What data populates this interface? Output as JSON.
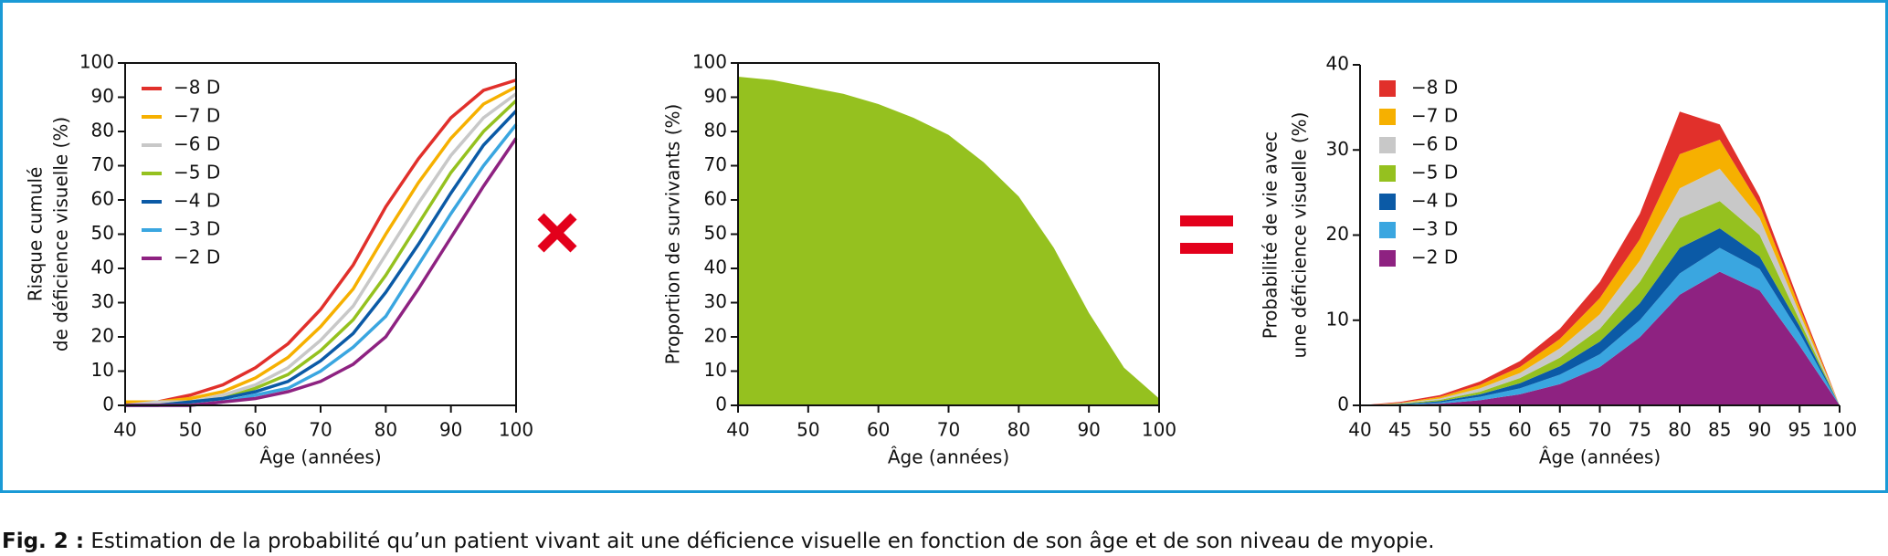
{
  "chart_data": [
    {
      "type": "line",
      "xlabel": "Âge (années)",
      "ylabel": [
        "Risque cumulé",
        "de déficience visuelle (%)"
      ],
      "x": [
        40,
        45,
        50,
        55,
        60,
        65,
        70,
        75,
        80,
        85,
        90,
        95,
        100
      ],
      "xlim": [
        40,
        100
      ],
      "xticks": [
        40,
        50,
        60,
        70,
        80,
        90,
        100
      ],
      "ylim": [
        0,
        100
      ],
      "yticks": [
        0,
        10,
        20,
        30,
        40,
        50,
        60,
        70,
        80,
        90,
        100
      ],
      "legend": "upper left",
      "grid": false,
      "series": [
        {
          "name": "−8 D",
          "color": "#e1302b",
          "values": [
            1,
            1,
            3,
            6,
            11,
            18,
            28,
            41,
            58,
            72,
            84,
            92,
            95
          ]
        },
        {
          "name": "−7 D",
          "color": "#f6b000",
          "values": [
            1,
            1,
            2,
            4,
            8,
            14,
            23,
            34,
            50,
            65,
            78,
            88,
            93
          ]
        },
        {
          "name": "−6 D",
          "color": "#c8c8c8",
          "values": [
            0,
            1,
            1,
            3,
            6,
            11,
            19,
            29,
            44,
            59,
            73,
            84,
            91
          ]
        },
        {
          "name": "−5 D",
          "color": "#95c11f",
          "values": [
            0,
            0,
            1,
            2,
            5,
            9,
            16,
            25,
            38,
            53,
            68,
            80,
            89
          ]
        },
        {
          "name": "−4 D",
          "color": "#0b5aa6",
          "values": [
            0,
            0,
            1,
            2,
            4,
            7,
            13,
            21,
            33,
            47,
            62,
            76,
            86
          ]
        },
        {
          "name": "−3 D",
          "color": "#3aa6e0",
          "values": [
            0,
            0,
            0,
            1,
            3,
            5,
            10,
            17,
            26,
            41,
            56,
            70,
            82
          ]
        },
        {
          "name": "−2 D",
          "color": "#8e2281",
          "values": [
            0,
            0,
            0,
            1,
            2,
            4,
            7,
            12,
            20,
            34,
            49,
            64,
            78
          ]
        }
      ]
    },
    {
      "type": "area",
      "xlabel": "Âge (années)",
      "ylabel": [
        "Proportion de survivants (%)"
      ],
      "x": [
        40,
        45,
        50,
        55,
        60,
        65,
        70,
        75,
        80,
        85,
        90,
        95,
        100
      ],
      "xlim": [
        40,
        100
      ],
      "xticks": [
        40,
        50,
        60,
        70,
        80,
        90,
        100
      ],
      "ylim": [
        0,
        100
      ],
      "yticks": [
        0,
        10,
        20,
        30,
        40,
        50,
        60,
        70,
        80,
        90,
        100
      ],
      "grid": false,
      "color": "#95c11f",
      "values": [
        96,
        95,
        93,
        91,
        88,
        84,
        79,
        71,
        61,
        46,
        27,
        11,
        2
      ]
    },
    {
      "type": "stacked_area",
      "xlabel": "Âge (années)",
      "ylabel": [
        "Probabilité de vie avec",
        "une déficience visuelle (%)"
      ],
      "x": [
        40,
        45,
        50,
        55,
        60,
        65,
        70,
        75,
        80,
        85,
        90,
        95,
        100
      ],
      "xlim": [
        40,
        100
      ],
      "xticks": [
        40,
        45,
        50,
        55,
        60,
        65,
        70,
        75,
        80,
        85,
        90,
        95,
        100
      ],
      "ylim": [
        0,
        40
      ],
      "yticks": [
        0,
        10,
        20,
        30,
        40
      ],
      "legend": "upper left",
      "grid": false,
      "series": [
        {
          "name": "−8 D",
          "color": "#e1302b",
          "values": [
            0,
            0.1,
            0.2,
            0.4,
            0.7,
            1.2,
            1.9,
            3,
            5,
            1.8,
            1,
            0.5,
            0
          ]
        },
        {
          "name": "−7 D",
          "color": "#f6b000",
          "values": [
            0,
            0.05,
            0.2,
            0.4,
            0.7,
            1.1,
            1.9,
            2.5,
            4,
            3.4,
            1.5,
            0.7,
            0
          ]
        },
        {
          "name": "−6 D",
          "color": "#c8c8c8",
          "values": [
            0,
            0.05,
            0.15,
            0.4,
            0.6,
            1.1,
            1.7,
            2.5,
            3.5,
            3.8,
            2,
            0.8,
            0
          ]
        },
        {
          "name": "−5 D",
          "color": "#95c11f",
          "values": [
            0,
            0.05,
            0.15,
            0.3,
            0.6,
            1,
            1.5,
            2.5,
            3.5,
            3.2,
            2.5,
            0.7,
            0
          ]
        },
        {
          "name": "−4 D",
          "color": "#0b5aa6",
          "values": [
            0,
            0.05,
            0.15,
            0.3,
            0.6,
            1,
            1.5,
            2,
            3,
            2.3,
            1.5,
            0.8,
            0
          ]
        },
        {
          "name": "−3 D",
          "color": "#3aa6e0",
          "values": [
            0,
            0.05,
            0.15,
            0.4,
            0.7,
            1.1,
            1.5,
            2,
            2.5,
            2.8,
            2.5,
            1.5,
            0
          ]
        },
        {
          "name": "−2 D",
          "color": "#8e2281",
          "values": [
            0,
            0.05,
            0.2,
            0.6,
            1.3,
            2.5,
            4.5,
            8,
            13,
            15.7,
            13.5,
            7,
            0
          ]
        }
      ]
    }
  ],
  "caption": {
    "label": "Fig. 2 :",
    "text": "Estimation de la probabilité qu’un patient vivant ait une déficience visuelle en fonction de son âge et de son niveau de myopie."
  }
}
